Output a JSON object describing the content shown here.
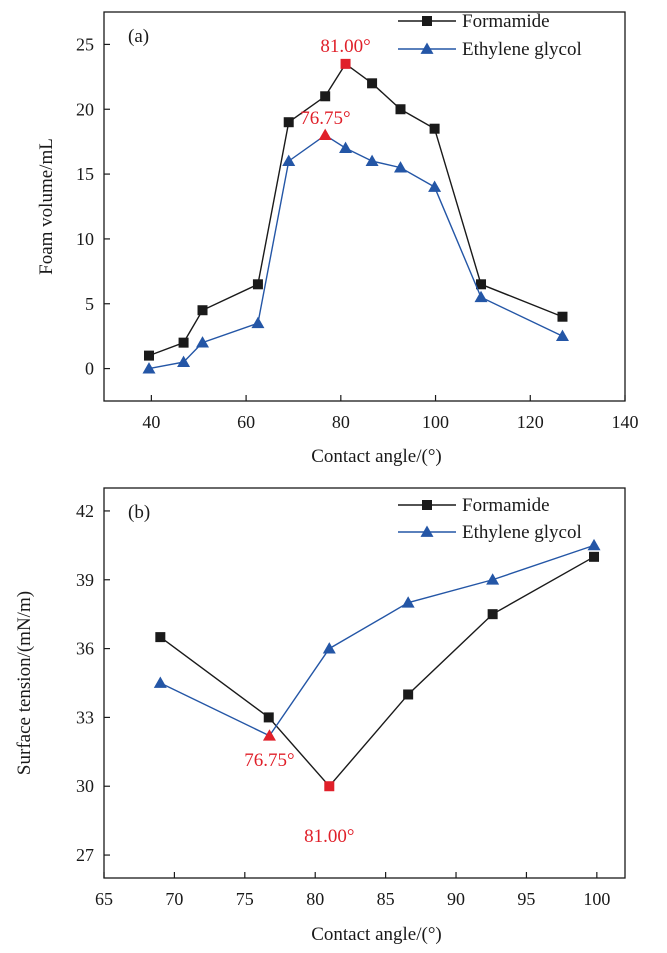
{
  "colors": {
    "formamide": "#1a1a1a",
    "ethylene_glycol": "#2456a6",
    "highlight": "#e0202a",
    "axis": "#1a1a1a"
  },
  "chart_data": [
    {
      "type": "line",
      "panel_label": "(a)",
      "xlabel": "Contact angle/(°)",
      "ylabel": "Foam volume/mL",
      "xlim": [
        30,
        140
      ],
      "ylim": [
        -2.5,
        27.5
      ],
      "xticks": [
        40,
        60,
        80,
        100,
        120,
        140
      ],
      "yticks": [
        0,
        5,
        10,
        15,
        20,
        25
      ],
      "grid": false,
      "legend_position": "top-right",
      "series": [
        {
          "name": "Formamide",
          "marker": "square",
          "color_key": "formamide",
          "x": [
            39.5,
            46.8,
            50.8,
            62.5,
            69.0,
            76.7,
            81.0,
            86.6,
            92.6,
            99.8,
            109.6,
            126.8
          ],
          "y": [
            1.0,
            2.0,
            4.5,
            6.5,
            19.0,
            21.0,
            23.5,
            22.0,
            20.0,
            18.5,
            6.5,
            4.0
          ],
          "highlight_index": 6
        },
        {
          "name": "Ethylene glycol",
          "marker": "triangle",
          "color_key": "ethylene_glycol",
          "x": [
            39.5,
            46.8,
            50.8,
            62.5,
            69.0,
            76.7,
            81.0,
            86.6,
            92.6,
            99.8,
            109.6,
            126.8
          ],
          "y": [
            0.0,
            0.5,
            2.0,
            3.5,
            16.0,
            18.0,
            17.0,
            16.0,
            15.5,
            14.0,
            5.5,
            2.5
          ],
          "highlight_index": 5
        }
      ],
      "annotations": [
        {
          "text": "81.00°",
          "x": 81.0,
          "y": 23.5
        },
        {
          "text": "76.75°",
          "x": 76.75,
          "y": 18.0
        }
      ]
    },
    {
      "type": "line",
      "panel_label": "(b)",
      "xlabel": "Contact angle/(°)",
      "ylabel": "Surface tension/(mN/m)",
      "xlim": [
        65,
        102
      ],
      "ylim": [
        26,
        43
      ],
      "xticks": [
        65,
        70,
        75,
        80,
        85,
        90,
        95,
        100
      ],
      "yticks": [
        27,
        30,
        33,
        36,
        39,
        42
      ],
      "grid": false,
      "legend_position": "top-right",
      "series": [
        {
          "name": "Formamide",
          "marker": "square",
          "color_key": "formamide",
          "x": [
            69.0,
            76.7,
            81.0,
            86.6,
            92.6,
            99.8
          ],
          "y": [
            36.5,
            33.0,
            30.0,
            34.0,
            37.5,
            40.0
          ],
          "highlight_index": 2
        },
        {
          "name": "Ethylene glycol",
          "marker": "triangle",
          "color_key": "ethylene_glycol",
          "x": [
            69.0,
            76.75,
            81.0,
            86.6,
            92.6,
            99.8
          ],
          "y": [
            34.5,
            32.2,
            36.0,
            38.0,
            39.0,
            40.5
          ],
          "highlight_index": 1
        }
      ],
      "annotations": [
        {
          "text": "76.75°",
          "x": 76.75,
          "y": 32.2
        },
        {
          "text": "81.00°",
          "x": 81.0,
          "y": 30.0
        }
      ]
    }
  ]
}
